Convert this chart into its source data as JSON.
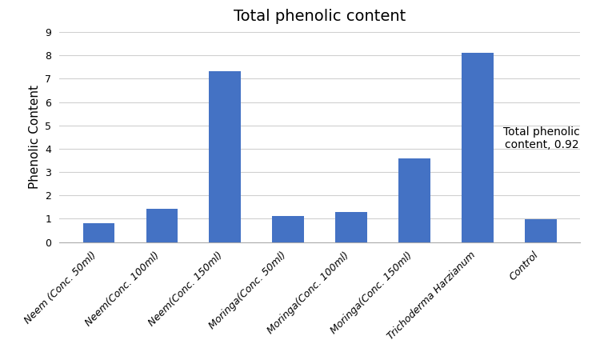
{
  "title": "Total phenolic content",
  "categories": [
    "Neem (Conc. 50ml)",
    "Neem(Conc. 100ml)",
    "Neem(Conc. 150ml)",
    "Moringa(Conc. 50ml)",
    "Moringa(Conc. 100ml)",
    "Moringa(Conc. 150ml)",
    "Trichoderma Harzianum",
    "Control"
  ],
  "values": [
    0.82,
    1.42,
    7.32,
    1.12,
    1.28,
    3.58,
    8.1,
    0.97
  ],
  "bar_color": "#4472C4",
  "ylabel": "Phenolic Content",
  "ylim": [
    0,
    9
  ],
  "yticks": [
    0,
    1,
    2,
    3,
    4,
    5,
    6,
    7,
    8,
    9
  ],
  "annotation_text": "Total phenolic\ncontent, 0.92",
  "title_fontsize": 14,
  "ylabel_fontsize": 11,
  "tick_fontsize": 9,
  "annotation_fontsize": 10,
  "background_color": "#ffffff",
  "grid_color": "#d0d0d0"
}
